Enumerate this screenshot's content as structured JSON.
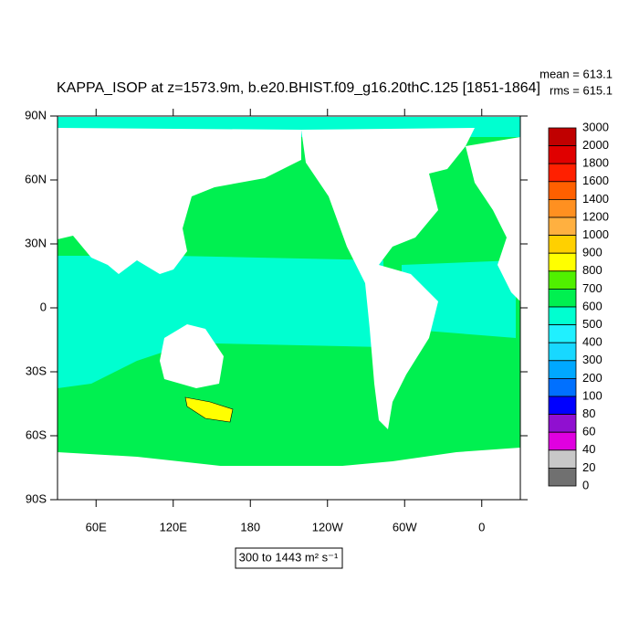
{
  "title": "KAPPA_ISOP at z=1573.9m, b.e20.BHIST.f09_g16.20thC.125 [1851-1864]",
  "stats": {
    "mean": "mean = 613.1",
    "rms": "rms = 615.1"
  },
  "map": {
    "xlim": [
      30,
      390
    ],
    "ylim": [
      -90,
      90
    ],
    "lat_ticks": [
      {
        "value": 90,
        "label": "90N"
      },
      {
        "value": 60,
        "label": "60N"
      },
      {
        "value": 30,
        "label": "30N"
      },
      {
        "value": 0,
        "label": "0"
      },
      {
        "value": -30,
        "label": "30S"
      },
      {
        "value": -60,
        "label": "60S"
      },
      {
        "value": -90,
        "label": "90S"
      }
    ],
    "lon_ticks": [
      {
        "value": 60,
        "label": "60E"
      },
      {
        "value": 120,
        "label": "120E"
      },
      {
        "value": 180,
        "label": "180"
      },
      {
        "value": -120,
        "label": "120W"
      },
      {
        "value": -60,
        "label": "60W"
      },
      {
        "value": 0,
        "label": "0"
      }
    ]
  },
  "colorbar": {
    "levels": [
      3000,
      2000,
      1800,
      1600,
      1400,
      1200,
      1000,
      900,
      800,
      700,
      600,
      500,
      400,
      300,
      200,
      100,
      80,
      60,
      40,
      20,
      0
    ],
    "colors": [
      "#c00000",
      "#e00000",
      "#ff2000",
      "#ff6000",
      "#ff9020",
      "#ffb040",
      "#ffd000",
      "#ffff00",
      "#50f000",
      "#00f050",
      "#00ffd0",
      "#20f0ff",
      "#18d8ff",
      "#00a8ff",
      "#0070ff",
      "#0000ff",
      "#9010d0",
      "#e000e0",
      "#c8c8c8",
      "#707070"
    ]
  },
  "range_label": "300 to 1443 m² s⁻¹"
}
